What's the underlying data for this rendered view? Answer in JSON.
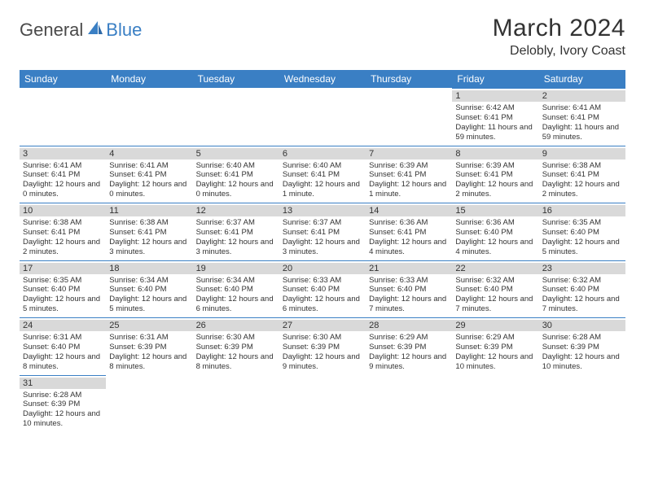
{
  "logo": {
    "text1": "General",
    "text2": "Blue",
    "sail_color": "#3a7fc4",
    "text1_color": "#4a4a4a"
  },
  "header": {
    "month_title": "March 2024",
    "location": "Delobly, Ivory Coast"
  },
  "colors": {
    "header_bg": "#3a7fc4",
    "header_fg": "#ffffff",
    "daynum_bg": "#d9d9d9",
    "cell_border": "#3a7fc4",
    "text": "#333333",
    "background": "#ffffff"
  },
  "weekdays": [
    "Sunday",
    "Monday",
    "Tuesday",
    "Wednesday",
    "Thursday",
    "Friday",
    "Saturday"
  ],
  "weeks": [
    [
      null,
      null,
      null,
      null,
      null,
      {
        "day": "1",
        "sunrise": "Sunrise: 6:42 AM",
        "sunset": "Sunset: 6:41 PM",
        "daylight": "Daylight: 11 hours and 59 minutes."
      },
      {
        "day": "2",
        "sunrise": "Sunrise: 6:41 AM",
        "sunset": "Sunset: 6:41 PM",
        "daylight": "Daylight: 11 hours and 59 minutes."
      }
    ],
    [
      {
        "day": "3",
        "sunrise": "Sunrise: 6:41 AM",
        "sunset": "Sunset: 6:41 PM",
        "daylight": "Daylight: 12 hours and 0 minutes."
      },
      {
        "day": "4",
        "sunrise": "Sunrise: 6:41 AM",
        "sunset": "Sunset: 6:41 PM",
        "daylight": "Daylight: 12 hours and 0 minutes."
      },
      {
        "day": "5",
        "sunrise": "Sunrise: 6:40 AM",
        "sunset": "Sunset: 6:41 PM",
        "daylight": "Daylight: 12 hours and 0 minutes."
      },
      {
        "day": "6",
        "sunrise": "Sunrise: 6:40 AM",
        "sunset": "Sunset: 6:41 PM",
        "daylight": "Daylight: 12 hours and 1 minute."
      },
      {
        "day": "7",
        "sunrise": "Sunrise: 6:39 AM",
        "sunset": "Sunset: 6:41 PM",
        "daylight": "Daylight: 12 hours and 1 minute."
      },
      {
        "day": "8",
        "sunrise": "Sunrise: 6:39 AM",
        "sunset": "Sunset: 6:41 PM",
        "daylight": "Daylight: 12 hours and 2 minutes."
      },
      {
        "day": "9",
        "sunrise": "Sunrise: 6:38 AM",
        "sunset": "Sunset: 6:41 PM",
        "daylight": "Daylight: 12 hours and 2 minutes."
      }
    ],
    [
      {
        "day": "10",
        "sunrise": "Sunrise: 6:38 AM",
        "sunset": "Sunset: 6:41 PM",
        "daylight": "Daylight: 12 hours and 2 minutes."
      },
      {
        "day": "11",
        "sunrise": "Sunrise: 6:38 AM",
        "sunset": "Sunset: 6:41 PM",
        "daylight": "Daylight: 12 hours and 3 minutes."
      },
      {
        "day": "12",
        "sunrise": "Sunrise: 6:37 AM",
        "sunset": "Sunset: 6:41 PM",
        "daylight": "Daylight: 12 hours and 3 minutes."
      },
      {
        "day": "13",
        "sunrise": "Sunrise: 6:37 AM",
        "sunset": "Sunset: 6:41 PM",
        "daylight": "Daylight: 12 hours and 3 minutes."
      },
      {
        "day": "14",
        "sunrise": "Sunrise: 6:36 AM",
        "sunset": "Sunset: 6:41 PM",
        "daylight": "Daylight: 12 hours and 4 minutes."
      },
      {
        "day": "15",
        "sunrise": "Sunrise: 6:36 AM",
        "sunset": "Sunset: 6:40 PM",
        "daylight": "Daylight: 12 hours and 4 minutes."
      },
      {
        "day": "16",
        "sunrise": "Sunrise: 6:35 AM",
        "sunset": "Sunset: 6:40 PM",
        "daylight": "Daylight: 12 hours and 5 minutes."
      }
    ],
    [
      {
        "day": "17",
        "sunrise": "Sunrise: 6:35 AM",
        "sunset": "Sunset: 6:40 PM",
        "daylight": "Daylight: 12 hours and 5 minutes."
      },
      {
        "day": "18",
        "sunrise": "Sunrise: 6:34 AM",
        "sunset": "Sunset: 6:40 PM",
        "daylight": "Daylight: 12 hours and 5 minutes."
      },
      {
        "day": "19",
        "sunrise": "Sunrise: 6:34 AM",
        "sunset": "Sunset: 6:40 PM",
        "daylight": "Daylight: 12 hours and 6 minutes."
      },
      {
        "day": "20",
        "sunrise": "Sunrise: 6:33 AM",
        "sunset": "Sunset: 6:40 PM",
        "daylight": "Daylight: 12 hours and 6 minutes."
      },
      {
        "day": "21",
        "sunrise": "Sunrise: 6:33 AM",
        "sunset": "Sunset: 6:40 PM",
        "daylight": "Daylight: 12 hours and 7 minutes."
      },
      {
        "day": "22",
        "sunrise": "Sunrise: 6:32 AM",
        "sunset": "Sunset: 6:40 PM",
        "daylight": "Daylight: 12 hours and 7 minutes."
      },
      {
        "day": "23",
        "sunrise": "Sunrise: 6:32 AM",
        "sunset": "Sunset: 6:40 PM",
        "daylight": "Daylight: 12 hours and 7 minutes."
      }
    ],
    [
      {
        "day": "24",
        "sunrise": "Sunrise: 6:31 AM",
        "sunset": "Sunset: 6:40 PM",
        "daylight": "Daylight: 12 hours and 8 minutes."
      },
      {
        "day": "25",
        "sunrise": "Sunrise: 6:31 AM",
        "sunset": "Sunset: 6:39 PM",
        "daylight": "Daylight: 12 hours and 8 minutes."
      },
      {
        "day": "26",
        "sunrise": "Sunrise: 6:30 AM",
        "sunset": "Sunset: 6:39 PM",
        "daylight": "Daylight: 12 hours and 8 minutes."
      },
      {
        "day": "27",
        "sunrise": "Sunrise: 6:30 AM",
        "sunset": "Sunset: 6:39 PM",
        "daylight": "Daylight: 12 hours and 9 minutes."
      },
      {
        "day": "28",
        "sunrise": "Sunrise: 6:29 AM",
        "sunset": "Sunset: 6:39 PM",
        "daylight": "Daylight: 12 hours and 9 minutes."
      },
      {
        "day": "29",
        "sunrise": "Sunrise: 6:29 AM",
        "sunset": "Sunset: 6:39 PM",
        "daylight": "Daylight: 12 hours and 10 minutes."
      },
      {
        "day": "30",
        "sunrise": "Sunrise: 6:28 AM",
        "sunset": "Sunset: 6:39 PM",
        "daylight": "Daylight: 12 hours and 10 minutes."
      }
    ],
    [
      {
        "day": "31",
        "sunrise": "Sunrise: 6:28 AM",
        "sunset": "Sunset: 6:39 PM",
        "daylight": "Daylight: 12 hours and 10 minutes."
      },
      null,
      null,
      null,
      null,
      null,
      null
    ]
  ]
}
